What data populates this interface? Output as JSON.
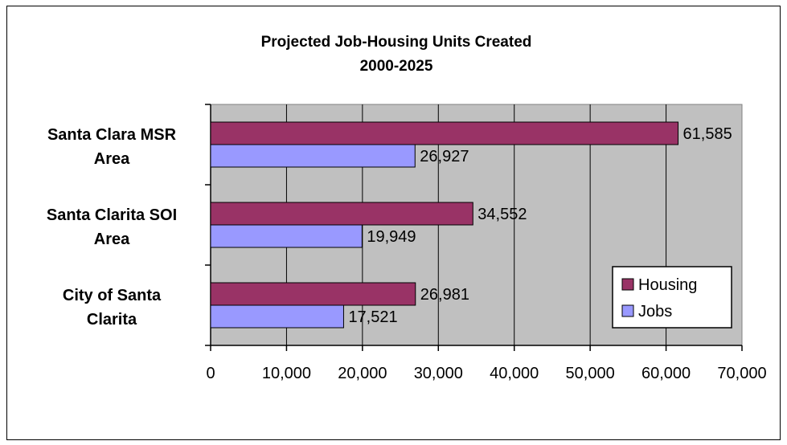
{
  "chart_data": {
    "type": "bar",
    "orientation": "horizontal",
    "title": "Projected Job-Housing Units Created",
    "subtitle": "2000-2025",
    "categories": [
      [
        "Santa Clara MSR",
        "Area"
      ],
      [
        "Santa Clarita SOI",
        "Area"
      ],
      [
        "City of Santa",
        "Clarita"
      ]
    ],
    "series": [
      {
        "name": "Housing",
        "values": [
          61585,
          34552,
          26981
        ],
        "labels": [
          "61,585",
          "34,552",
          "26,981"
        ],
        "color": "#993366"
      },
      {
        "name": "Jobs",
        "values": [
          26927,
          19949,
          17521
        ],
        "labels": [
          "26,927",
          "19,949",
          "17,521"
        ],
        "color": "#9999FF"
      }
    ],
    "xlim": [
      0,
      70000
    ],
    "xticks": [
      "0",
      "10,000",
      "20,000",
      "30,000",
      "40,000",
      "50,000",
      "60,000",
      "70,000"
    ],
    "grid": "vertical",
    "plot_background": "#C0C0C0",
    "legend_position": "right"
  }
}
